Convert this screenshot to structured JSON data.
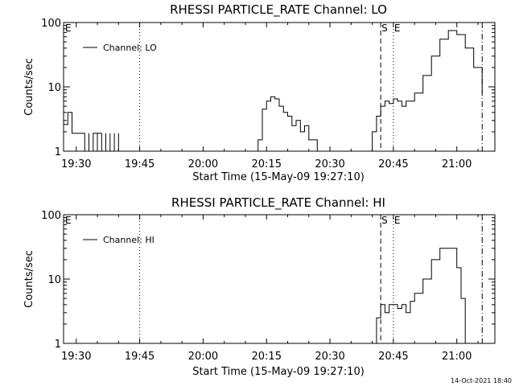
{
  "footer": {
    "timestamp": "14-Oct-2021 18:40"
  },
  "chart_data": [
    {
      "type": "line",
      "title": "RHESSI PARTICLE_RATE Channel: LO",
      "xlabel": "Start Time (15-May-09 19:27:10)",
      "ylabel": "Counts/sec",
      "yscale": "log",
      "ylim": [
        1,
        100
      ],
      "xlim": [
        "19:27",
        "21:09"
      ],
      "x_ticks": [
        "19:30",
        "19:45",
        "20:00",
        "20:15",
        "20:30",
        "20:45",
        "21:00"
      ],
      "y_ticks": [
        "1",
        "10",
        "100"
      ],
      "legend": {
        "label": "Channel: LO",
        "position": "top-left"
      },
      "markers": [
        {
          "label": "E",
          "time": "19:27",
          "style": "none"
        },
        {
          "label": "",
          "time": "19:45",
          "style": "dotted"
        },
        {
          "label": "S",
          "time": "20:42",
          "style": "dashed"
        },
        {
          "label": "E",
          "time": "20:45",
          "style": "dotted"
        },
        {
          "label": "",
          "time": "21:06",
          "style": "dashdot"
        }
      ],
      "series": [
        {
          "name": "Channel: LO",
          "x": [
            "19:27",
            "19:28",
            "19:29",
            "19:29",
            "19:30",
            "19:31",
            "19:31",
            "19:32",
            "19:32",
            "19:33",
            "19:33",
            "19:34",
            "19:34",
            "19:35",
            "19:35",
            "19:36",
            "19:36",
            "19:37",
            "19:37",
            "19:38",
            "19:38",
            "19:39",
            "19:39",
            "19:40",
            "19:40",
            "19:41",
            "20:10",
            "20:12",
            "20:13",
            "20:14",
            "20:15",
            "20:16",
            "20:17",
            "20:18",
            "20:19",
            "20:20",
            "20:21",
            "20:22",
            "20:23",
            "20:24",
            "20:25",
            "20:26",
            "20:27",
            "20:39",
            "20:40",
            "20:41",
            "20:42",
            "20:43",
            "20:44",
            "20:45",
            "20:46",
            "20:47",
            "20:48",
            "20:50",
            "20:52",
            "20:54",
            "20:56",
            "20:58",
            "21:00",
            "21:02",
            "21:04",
            "21:06"
          ],
          "y": [
            2.6,
            4.0,
            2.9,
            1.9,
            1.9,
            1.9,
            1.9,
            1.9,
            1.0,
            1.9,
            1.0,
            1.0,
            1.9,
            1.0,
            1.9,
            1.0,
            1.0,
            1.9,
            1.0,
            1.9,
            1.0,
            1.9,
            1.0,
            1.9,
            1.0,
            1.0,
            1.0,
            1.0,
            1.5,
            4.5,
            6.0,
            7.0,
            6.5,
            5.0,
            4.0,
            3.5,
            2.5,
            3.0,
            2.0,
            2.5,
            1.5,
            1.5,
            1.0,
            1.0,
            2.0,
            3.5,
            5.0,
            6.0,
            5.5,
            6.5,
            6.0,
            5.0,
            6.0,
            8.0,
            15.0,
            30.0,
            55.0,
            75.0,
            65.0,
            40.0,
            20.0,
            8.0
          ]
        }
      ]
    },
    {
      "type": "line",
      "title": "RHESSI PARTICLE_RATE Channel: HI",
      "xlabel": "Start Time (15-May-09 19:27:10)",
      "ylabel": "Counts/sec",
      "yscale": "log",
      "ylim": [
        1,
        100
      ],
      "xlim": [
        "19:27",
        "21:09"
      ],
      "x_ticks": [
        "19:30",
        "19:45",
        "20:00",
        "20:15",
        "20:30",
        "20:45",
        "21:00"
      ],
      "y_ticks": [
        "1",
        "10",
        "100"
      ],
      "legend": {
        "label": "Channel: HI",
        "position": "top-left"
      },
      "markers": [
        {
          "label": "E",
          "time": "19:27",
          "style": "none"
        },
        {
          "label": "",
          "time": "19:45",
          "style": "dotted"
        },
        {
          "label": "S",
          "time": "20:42",
          "style": "dashed"
        },
        {
          "label": "E",
          "time": "20:45",
          "style": "dotted"
        },
        {
          "label": "",
          "time": "21:06",
          "style": "dashdot"
        }
      ],
      "series": [
        {
          "name": "Channel: HI",
          "x": [
            "20:40",
            "20:41",
            "20:42",
            "20:43",
            "20:44",
            "20:45",
            "20:46",
            "20:47",
            "20:48",
            "20:49",
            "20:50",
            "20:52",
            "20:54",
            "20:56",
            "20:58",
            "21:00",
            "21:01",
            "21:02"
          ],
          "y": [
            1.0,
            2.5,
            4.0,
            3.0,
            4.0,
            4.0,
            3.5,
            4.0,
            3.0,
            4.5,
            6.0,
            10.0,
            20.0,
            30.0,
            30.0,
            15.0,
            5.0,
            1.0
          ]
        }
      ]
    }
  ]
}
